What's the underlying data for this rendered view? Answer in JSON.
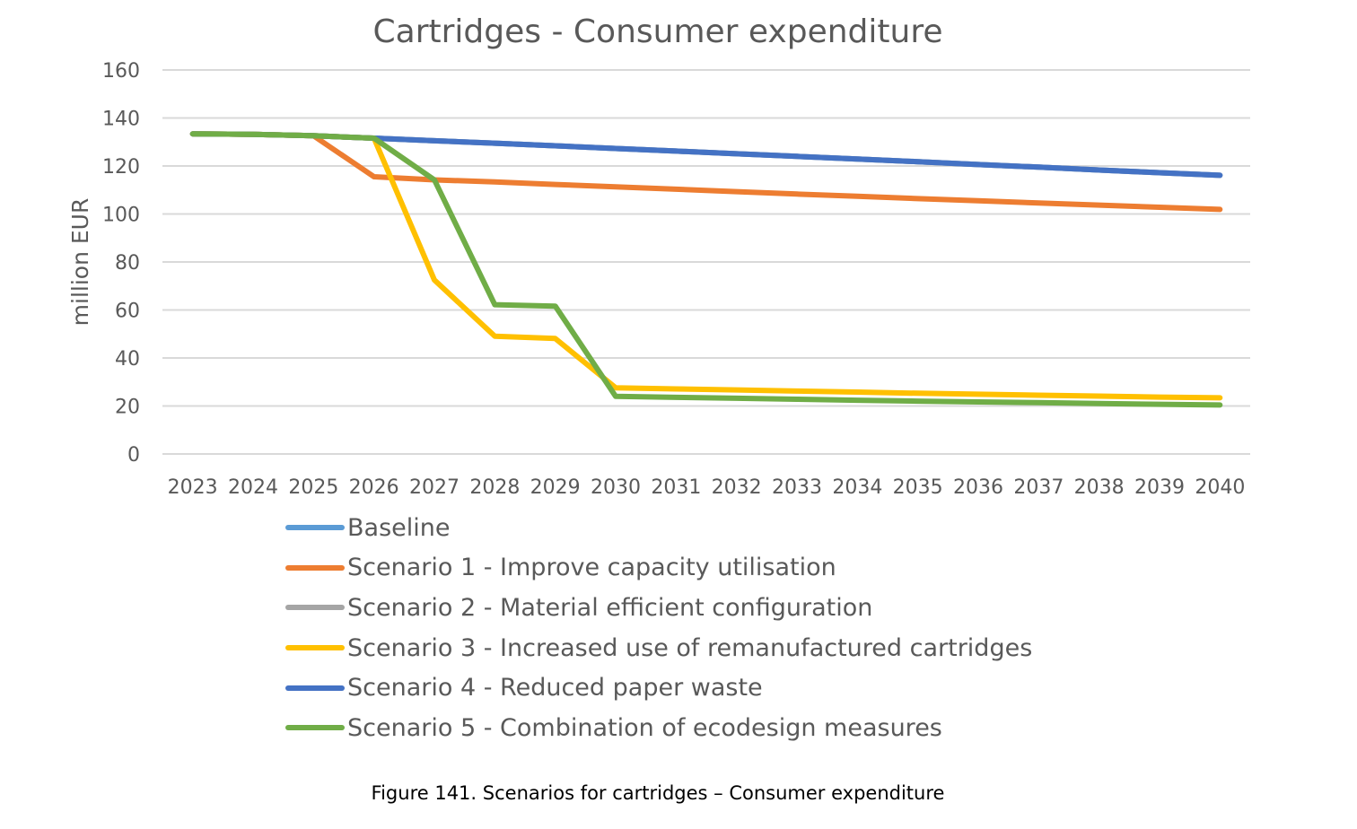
{
  "chart_data": {
    "type": "line",
    "title": "Cartridges - Consumer expenditure",
    "xlabel": "",
    "ylabel": "million EUR",
    "ylim": [
      0,
      160
    ],
    "yticks": [
      0,
      20,
      40,
      60,
      80,
      100,
      120,
      140,
      160
    ],
    "grid": "horizontal",
    "legend_position": "bottom",
    "x": [
      "2023",
      "2024",
      "2025",
      "2026",
      "2027",
      "2028",
      "2029",
      "2030",
      "2031",
      "2032",
      "2033",
      "2034",
      "2035",
      "2036",
      "2037",
      "2038",
      "2039",
      "2040"
    ],
    "series": [
      {
        "name": "Baseline",
        "color": "#5B9BD5",
        "values": [
          133.4,
          133.2,
          132.6,
          131.6,
          130.5,
          129.5,
          128.4,
          127.3,
          126.2,
          125.1,
          124.0,
          122.9,
          121.8,
          120.6,
          119.5,
          118.3,
          117.2,
          116.1
        ]
      },
      {
        "name": "Scenario 1 - Improve capacity utilisation",
        "color": "#ED7D31",
        "values": [
          133.4,
          133.2,
          132.6,
          115.5,
          114.2,
          113.4,
          112.3,
          111.3,
          110.3,
          109.3,
          108.3,
          107.4,
          106.4,
          105.5,
          104.6,
          103.7,
          102.8,
          101.9
        ]
      },
      {
        "name": "Scenario 2 - Material efficient configuration",
        "color": "#A5A5A5",
        "values": [
          133.4,
          133.2,
          132.6,
          131.6,
          130.5,
          129.5,
          128.4,
          127.3,
          126.2,
          125.1,
          124.0,
          122.9,
          121.8,
          120.6,
          119.5,
          118.3,
          117.2,
          116.1
        ]
      },
      {
        "name": "Scenario 3 - Increased use of remanufactured cartridges",
        "color": "#FFC000",
        "values": [
          133.4,
          133.2,
          132.6,
          131.6,
          72.5,
          49.1,
          48.1,
          27.6,
          27.1,
          26.7,
          26.2,
          25.8,
          25.3,
          24.9,
          24.5,
          24.1,
          23.7,
          23.4
        ]
      },
      {
        "name": "Scenario 4 - Reduced paper waste",
        "color": "#4472C4",
        "values": [
          133.4,
          133.2,
          132.6,
          131.6,
          130.5,
          129.5,
          128.4,
          127.3,
          126.2,
          125.1,
          124.0,
          122.9,
          121.8,
          120.6,
          119.5,
          118.3,
          117.2,
          116.1
        ]
      },
      {
        "name": "Scenario 5 - Combination of ecodesign measures",
        "color": "#70AD47",
        "values": [
          133.4,
          133.2,
          132.6,
          131.6,
          114.2,
          62.2,
          61.6,
          24.0,
          23.6,
          23.2,
          22.8,
          22.4,
          22.0,
          21.7,
          21.4,
          21.0,
          20.7,
          20.4
        ]
      }
    ]
  },
  "caption": "Figure 141. Scenarios for cartridges – Consumer expenditure"
}
